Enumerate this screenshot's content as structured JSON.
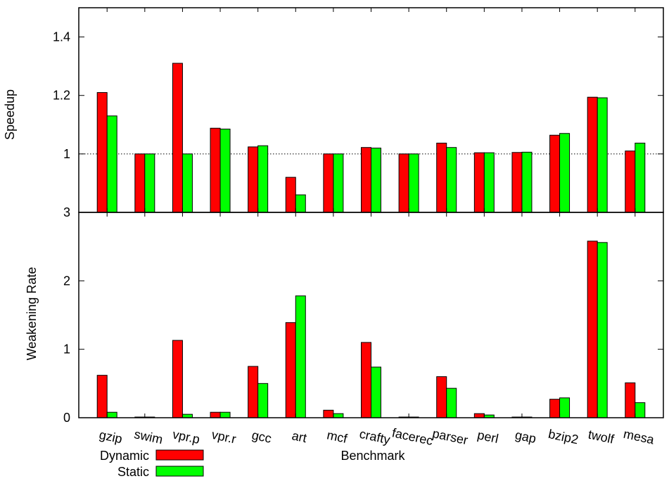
{
  "chart_data": [
    {
      "type": "bar",
      "ylabel": "Speedup",
      "ylim": [
        0.8,
        1.5
      ],
      "yticks": [
        "1",
        "1.2",
        "1.4"
      ],
      "reference_line": 1.0,
      "categories": [
        "gzip",
        "swim",
        "vpr.p",
        "vpr.r",
        "gcc",
        "art",
        "mcf",
        "crafty",
        "facerec",
        "parser",
        "perl",
        "gap",
        "bzip2",
        "twolf",
        "mesa"
      ],
      "series": [
        {
          "name": "Dynamic",
          "color": "#ff0000",
          "values": [
            1.21,
            1.0,
            1.31,
            1.088,
            1.024,
            0.92,
            1.0,
            1.022,
            1.0,
            1.037,
            1.004,
            1.005,
            1.064,
            1.194,
            1.01
          ]
        },
        {
          "name": "Static",
          "color": "#00ff00",
          "values": [
            1.13,
            1.0,
            1.0,
            1.085,
            1.028,
            0.86,
            1.0,
            1.02,
            1.0,
            1.022,
            1.004,
            1.006,
            1.07,
            1.192,
            1.037
          ]
        }
      ]
    },
    {
      "type": "bar",
      "ylabel": "Weakening Rate",
      "xlabel": "Benchmark",
      "ylim": [
        0,
        3
      ],
      "yticks": [
        "0",
        "1",
        "2",
        "3"
      ],
      "categories": [
        "gzip",
        "swim",
        "vpr.p",
        "vpr.r",
        "gcc",
        "art",
        "mcf",
        "crafty",
        "facerec",
        "parser",
        "perl",
        "gap",
        "bzip2",
        "twolf",
        "mesa"
      ],
      "series": [
        {
          "name": "Dynamic",
          "color": "#ff0000",
          "values": [
            0.62,
            0.01,
            1.13,
            0.08,
            0.75,
            1.39,
            0.11,
            1.1,
            0.01,
            0.6,
            0.06,
            0.01,
            0.27,
            2.58,
            0.51
          ]
        },
        {
          "name": "Static",
          "color": "#00ff00",
          "values": [
            0.08,
            0.01,
            0.05,
            0.08,
            0.5,
            1.78,
            0.06,
            0.74,
            0.01,
            0.43,
            0.04,
            0.01,
            0.29,
            2.56,
            0.22
          ]
        }
      ]
    }
  ],
  "legend": {
    "placement": "bottom-left",
    "entries": [
      {
        "label": "Dynamic",
        "color": "#ff0000"
      },
      {
        "label": "Static",
        "color": "#00ff00"
      }
    ]
  }
}
